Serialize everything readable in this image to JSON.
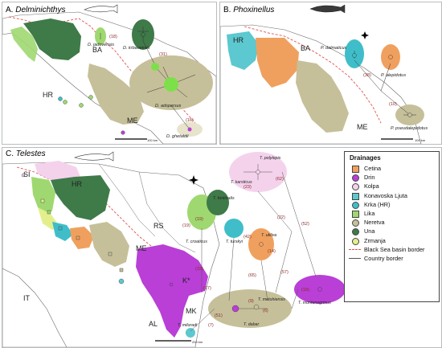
{
  "panels": {
    "a": {
      "letter": "A.",
      "genus": "Delminichthys",
      "countries": [
        "BA",
        "HR",
        "ME"
      ],
      "taxa": [
        "D. jadovensis",
        "D. krbavensis",
        "D. adspersus",
        "D. ghetaldii"
      ],
      "branch_counts": [
        "(18)",
        "(31)",
        "(16)"
      ],
      "scale": "100 km"
    },
    "b": {
      "letter": "B.",
      "genus": "Phoxinellus",
      "countries": [
        "HR",
        "BA",
        "ME"
      ],
      "taxa": [
        "P. dalmaticus",
        "P. alepidotus",
        "P. pseudalepidotus"
      ],
      "branch_counts": [
        "(38)",
        "(10)"
      ],
      "scale": "100 km"
    },
    "c": {
      "letter": "C.",
      "genus": "Telestes",
      "countries": [
        "SI",
        "HR",
        "BA",
        "RS",
        "ME",
        "K*",
        "MK",
        "AL",
        "IT"
      ],
      "taxa": [
        "T. polylepis",
        "T. karsticus",
        "T. fontinalis",
        "T. croaticus",
        "T. turskyi",
        "T. ukliva",
        "T. montenegrinus",
        "T. metohiensis",
        "T. dabar",
        "T. miloradi"
      ],
      "branch_counts": [
        "(62)",
        "(23)",
        "(22)",
        "(52)",
        "(19)",
        "(19)",
        "(42)",
        "(14)",
        "(33)",
        "(65)",
        "(57)",
        "(18)",
        "(17)",
        "(51)",
        "(9)",
        "(7)",
        "(6)"
      ],
      "scale": "200 km"
    }
  },
  "legend": {
    "title": "Drainages",
    "items": [
      {
        "label": "Cetina",
        "color": "#f0a05e",
        "shape": "square"
      },
      {
        "label": "Drin",
        "color": "#b93fd6",
        "shape": "round"
      },
      {
        "label": "Kolpa",
        "color": "#f4d2ec",
        "shape": "round"
      },
      {
        "label": "Konavoska Ljuta",
        "color": "#5cc8cf",
        "shape": "square"
      },
      {
        "label": "Krka (HR)",
        "color": "#3fbec9",
        "shape": "round"
      },
      {
        "label": "Lika",
        "color": "#9fd870",
        "shape": "square"
      },
      {
        "label": "Neretva",
        "color": "#c6c09a",
        "shape": "round"
      },
      {
        "label": "Una",
        "color": "#3f7a49",
        "shape": "round"
      },
      {
        "label": "Zrmanja",
        "color": "#e3ef8c",
        "shape": "round"
      }
    ],
    "borders": [
      {
        "label": "Black Sea basin border",
        "color": "#e05050",
        "style": "dashed"
      },
      {
        "label": "Country border",
        "color": "#555555",
        "style": "solid"
      }
    ]
  }
}
